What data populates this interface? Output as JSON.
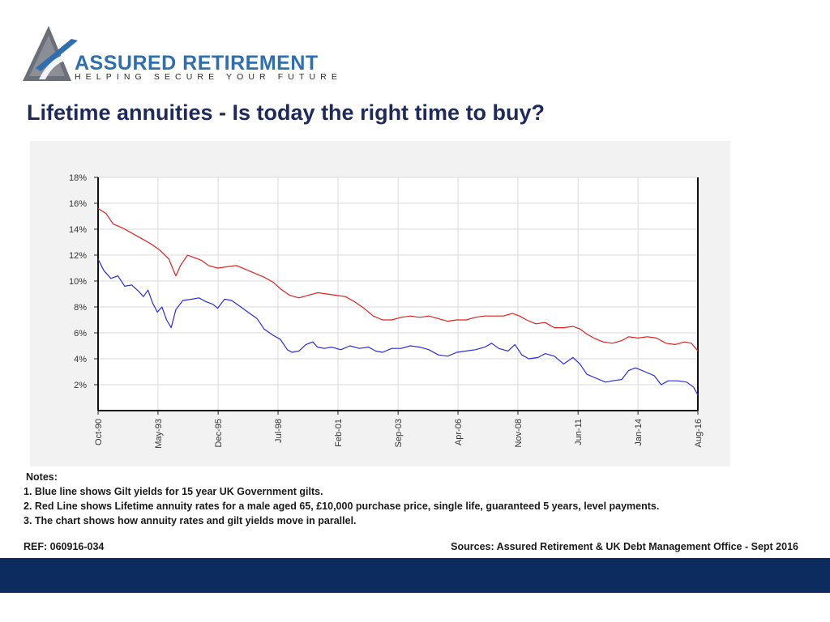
{
  "brand": {
    "name": "ASSURED RETIREMENT",
    "tagline": "HELPING SECURE YOUR FUTURE"
  },
  "page_title": "Lifetime annuities - Is today the right time to buy?",
  "chart_data": {
    "type": "line",
    "title": "",
    "xlabel": "",
    "ylabel": "",
    "ylim": [
      0,
      18
    ],
    "yticks": [
      2,
      4,
      6,
      8,
      10,
      12,
      14,
      16,
      18
    ],
    "ytick_labels": [
      "2%",
      "4%",
      "6%",
      "8%",
      "10%",
      "12%",
      "14%",
      "16%",
      "18%"
    ],
    "xlim": [
      1990.75,
      2016.58
    ],
    "x_ticks": [
      {
        "label": "Oct-90",
        "x": 1990.75
      },
      {
        "label": "May-93",
        "x": 1993.33
      },
      {
        "label": "Dec-95",
        "x": 1995.92
      },
      {
        "label": "Jul-98",
        "x": 1998.5
      },
      {
        "label": "Feb-01",
        "x": 2001.08
      },
      {
        "label": "Sep-03",
        "x": 2003.67
      },
      {
        "label": "Apr-06",
        "x": 2006.25
      },
      {
        "label": "Nov-08",
        "x": 2008.83
      },
      {
        "label": "Jun-11",
        "x": 2011.42
      },
      {
        "label": "Jan-14",
        "x": 2014.0
      },
      {
        "label": "Aug-16",
        "x": 2016.58
      }
    ],
    "grid": true,
    "series": [
      {
        "name": "Lifetime annuity rate",
        "color": "#e02020",
        "points": [
          [
            1990.75,
            15.6
          ],
          [
            1991.1,
            15.2
          ],
          [
            1991.4,
            14.4
          ],
          [
            1991.8,
            14.1
          ],
          [
            1992.2,
            13.7
          ],
          [
            1992.6,
            13.3
          ],
          [
            1993.0,
            12.9
          ],
          [
            1993.4,
            12.4
          ],
          [
            1993.8,
            11.7
          ],
          [
            1994.0,
            10.8
          ],
          [
            1994.1,
            10.4
          ],
          [
            1994.3,
            11.2
          ],
          [
            1994.6,
            12.0
          ],
          [
            1994.9,
            11.8
          ],
          [
            1995.2,
            11.6
          ],
          [
            1995.5,
            11.2
          ],
          [
            1995.9,
            11.0
          ],
          [
            1996.3,
            11.1
          ],
          [
            1996.7,
            11.2
          ],
          [
            1997.1,
            10.9
          ],
          [
            1997.5,
            10.6
          ],
          [
            1997.9,
            10.3
          ],
          [
            1998.3,
            9.9
          ],
          [
            1998.6,
            9.4
          ],
          [
            1999.0,
            8.9
          ],
          [
            1999.4,
            8.7
          ],
          [
            1999.8,
            8.9
          ],
          [
            2000.2,
            9.1
          ],
          [
            2000.6,
            9.0
          ],
          [
            2001.0,
            8.9
          ],
          [
            2001.4,
            8.8
          ],
          [
            2001.8,
            8.4
          ],
          [
            2002.2,
            7.9
          ],
          [
            2002.6,
            7.3
          ],
          [
            2003.0,
            7.0
          ],
          [
            2003.4,
            7.0
          ],
          [
            2003.8,
            7.2
          ],
          [
            2004.2,
            7.3
          ],
          [
            2004.6,
            7.2
          ],
          [
            2005.0,
            7.3
          ],
          [
            2005.4,
            7.1
          ],
          [
            2005.8,
            6.9
          ],
          [
            2006.2,
            7.0
          ],
          [
            2006.6,
            7.0
          ],
          [
            2007.0,
            7.2
          ],
          [
            2007.4,
            7.3
          ],
          [
            2007.8,
            7.3
          ],
          [
            2008.2,
            7.3
          ],
          [
            2008.6,
            7.5
          ],
          [
            2008.9,
            7.3
          ],
          [
            2009.2,
            7.0
          ],
          [
            2009.6,
            6.7
          ],
          [
            2010.0,
            6.8
          ],
          [
            2010.4,
            6.4
          ],
          [
            2010.8,
            6.4
          ],
          [
            2011.2,
            6.5
          ],
          [
            2011.5,
            6.3
          ],
          [
            2011.8,
            5.9
          ],
          [
            2012.1,
            5.6
          ],
          [
            2012.5,
            5.3
          ],
          [
            2012.9,
            5.2
          ],
          [
            2013.3,
            5.4
          ],
          [
            2013.6,
            5.7
          ],
          [
            2014.0,
            5.6
          ],
          [
            2014.4,
            5.7
          ],
          [
            2014.8,
            5.6
          ],
          [
            2015.2,
            5.2
          ],
          [
            2015.6,
            5.1
          ],
          [
            2016.0,
            5.3
          ],
          [
            2016.3,
            5.2
          ],
          [
            2016.58,
            4.6
          ]
        ]
      },
      {
        "name": "15 year gilt yield",
        "color": "#2b2be0",
        "points": [
          [
            1990.75,
            11.7
          ],
          [
            1991.0,
            10.8
          ],
          [
            1991.3,
            10.2
          ],
          [
            1991.6,
            10.4
          ],
          [
            1991.9,
            9.6
          ],
          [
            1992.2,
            9.7
          ],
          [
            1992.5,
            9.2
          ],
          [
            1992.7,
            8.8
          ],
          [
            1992.9,
            9.3
          ],
          [
            1993.1,
            8.3
          ],
          [
            1993.3,
            7.6
          ],
          [
            1993.5,
            8.0
          ],
          [
            1993.7,
            7.0
          ],
          [
            1993.9,
            6.4
          ],
          [
            1994.1,
            7.8
          ],
          [
            1994.4,
            8.5
          ],
          [
            1994.8,
            8.6
          ],
          [
            1995.1,
            8.7
          ],
          [
            1995.4,
            8.4
          ],
          [
            1995.7,
            8.2
          ],
          [
            1995.9,
            7.9
          ],
          [
            1996.2,
            8.6
          ],
          [
            1996.5,
            8.5
          ],
          [
            1996.9,
            8.0
          ],
          [
            1997.2,
            7.6
          ],
          [
            1997.6,
            7.1
          ],
          [
            1997.9,
            6.3
          ],
          [
            1998.3,
            5.8
          ],
          [
            1998.6,
            5.5
          ],
          [
            1998.9,
            4.7
          ],
          [
            1999.1,
            4.5
          ],
          [
            1999.4,
            4.6
          ],
          [
            1999.7,
            5.1
          ],
          [
            2000.0,
            5.3
          ],
          [
            2000.2,
            4.9
          ],
          [
            2000.5,
            4.8
          ],
          [
            2000.8,
            4.9
          ],
          [
            2001.2,
            4.7
          ],
          [
            2001.6,
            5.0
          ],
          [
            2002.0,
            4.8
          ],
          [
            2002.4,
            4.9
          ],
          [
            2002.7,
            4.6
          ],
          [
            2003.0,
            4.5
          ],
          [
            2003.4,
            4.8
          ],
          [
            2003.8,
            4.8
          ],
          [
            2004.2,
            5.0
          ],
          [
            2004.6,
            4.9
          ],
          [
            2005.0,
            4.7
          ],
          [
            2005.4,
            4.3
          ],
          [
            2005.8,
            4.2
          ],
          [
            2006.2,
            4.5
          ],
          [
            2006.6,
            4.6
          ],
          [
            2007.0,
            4.7
          ],
          [
            2007.4,
            4.9
          ],
          [
            2007.7,
            5.2
          ],
          [
            2008.0,
            4.8
          ],
          [
            2008.4,
            4.6
          ],
          [
            2008.7,
            5.1
          ],
          [
            2009.0,
            4.3
          ],
          [
            2009.3,
            4.0
          ],
          [
            2009.7,
            4.1
          ],
          [
            2010.0,
            4.4
          ],
          [
            2010.4,
            4.2
          ],
          [
            2010.8,
            3.6
          ],
          [
            2011.2,
            4.1
          ],
          [
            2011.5,
            3.6
          ],
          [
            2011.8,
            2.8
          ],
          [
            2012.2,
            2.5
          ],
          [
            2012.6,
            2.2
          ],
          [
            2012.9,
            2.3
          ],
          [
            2013.3,
            2.4
          ],
          [
            2013.6,
            3.1
          ],
          [
            2013.9,
            3.3
          ],
          [
            2014.3,
            3.0
          ],
          [
            2014.7,
            2.7
          ],
          [
            2015.0,
            2.0
          ],
          [
            2015.3,
            2.3
          ],
          [
            2015.7,
            2.3
          ],
          [
            2016.1,
            2.2
          ],
          [
            2016.4,
            1.8
          ],
          [
            2016.58,
            1.2
          ]
        ]
      }
    ]
  },
  "notes": {
    "heading": "Notes:",
    "items": [
      "1. Blue line shows Gilt yields for 15 year UK Government gilts.",
      "2. Red Line shows Lifetime annuity rates for a male aged 65, £10,000 purchase price, single life, guaranteed 5 years, level payments.",
      "3. The chart shows how annuity rates and gilt yields move in parallel."
    ]
  },
  "reference": "REF: 060916-034",
  "sources": "Sources: Assured Retirement & UK Debt Management Office - Sept 2016",
  "colors": {
    "title": "#1f2a5c",
    "brand_blue": "#2f6fb0",
    "footer_band": "#0c2b5e",
    "chart_background": "#f2f2f2"
  }
}
